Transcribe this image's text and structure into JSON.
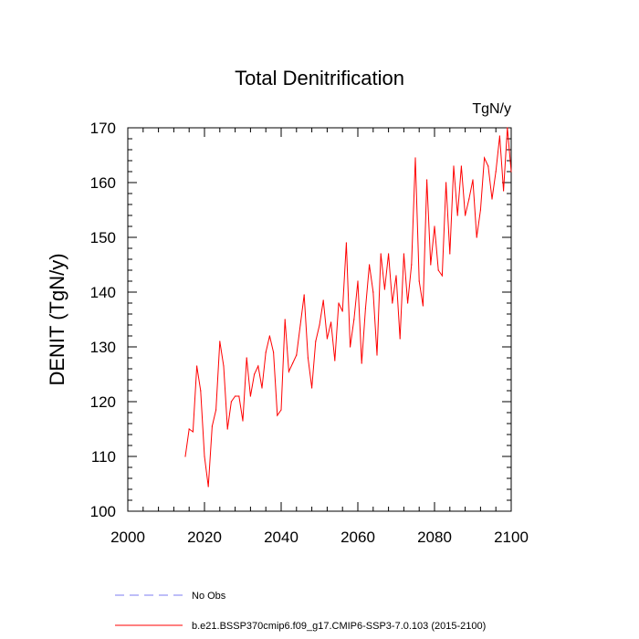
{
  "chart_data": {
    "type": "line",
    "title": "Total Denitrification",
    "units": "TgN/y",
    "ylabel": "DENIT  (TgN/y)",
    "xlabel": "",
    "xlim": [
      2000,
      2100
    ],
    "ylim": [
      100,
      170
    ],
    "xticks": [
      2000,
      2020,
      2040,
      2060,
      2080,
      2100
    ],
    "yticks": [
      100,
      110,
      120,
      130,
      140,
      150,
      160,
      170
    ],
    "grid": false,
    "legend_position": "bottom",
    "legend": [
      {
        "label": "No Obs",
        "color": "#7b7bf0",
        "style": "dashed"
      },
      {
        "label": "b.e21.BSSP370cmip6.f09_g17.CMIP6-SSP3-7.0.103 (2015-2100)",
        "color": "#ff0000",
        "style": "solid"
      }
    ],
    "series": [
      {
        "name": "b.e21.BSSP370cmip6.f09_g17.CMIP6-SSP3-7.0.103 (2015-2100)",
        "color": "#ff0000",
        "x": [
          2015,
          2016,
          2017,
          2018,
          2019,
          2020,
          2021,
          2022,
          2023,
          2024,
          2025,
          2026,
          2027,
          2028,
          2029,
          2030,
          2031,
          2032,
          2033,
          2034,
          2035,
          2036,
          2037,
          2038,
          2039,
          2040,
          2041,
          2042,
          2043,
          2044,
          2045,
          2046,
          2047,
          2048,
          2049,
          2050,
          2051,
          2052,
          2053,
          2054,
          2055,
          2056,
          2057,
          2058,
          2059,
          2060,
          2061,
          2062,
          2063,
          2064,
          2065,
          2066,
          2067,
          2068,
          2069,
          2070,
          2071,
          2072,
          2073,
          2074,
          2075,
          2076,
          2077,
          2078,
          2079,
          2080,
          2081,
          2082,
          2083,
          2084,
          2085,
          2086,
          2087,
          2088,
          2089,
          2090,
          2091,
          2092,
          2093,
          2094,
          2095,
          2096,
          2097,
          2098,
          2099,
          2100
        ],
        "values": [
          110.0,
          115.0,
          114.5,
          126.5,
          122.0,
          110.0,
          104.5,
          115.5,
          118.5,
          131.0,
          126.5,
          115.0,
          120.0,
          121.0,
          121.0,
          116.5,
          128.0,
          121.0,
          125.0,
          126.5,
          122.5,
          129.0,
          132.0,
          129.0,
          117.5,
          118.5,
          135.0,
          125.5,
          127.0,
          128.5,
          134.0,
          139.5,
          128.0,
          122.5,
          131.0,
          134.0,
          138.5,
          131.5,
          134.5,
          127.5,
          138.0,
          136.5,
          149.0,
          130.0,
          135.0,
          142.0,
          127.0,
          137.0,
          145.0,
          140.0,
          128.5,
          147.0,
          140.5,
          147.0,
          138.0,
          143.0,
          131.5,
          147.0,
          138.0,
          145.0,
          164.5,
          142.0,
          137.5,
          160.5,
          145.0,
          152.0,
          144.0,
          143.0,
          160.0,
          147.0,
          163.0,
          154.0,
          163.0,
          154.0,
          157.0,
          160.5,
          150.0,
          155.0,
          164.5,
          163.0,
          157.0,
          162.0,
          168.5,
          158.5,
          170.0,
          162.0
        ]
      }
    ]
  }
}
